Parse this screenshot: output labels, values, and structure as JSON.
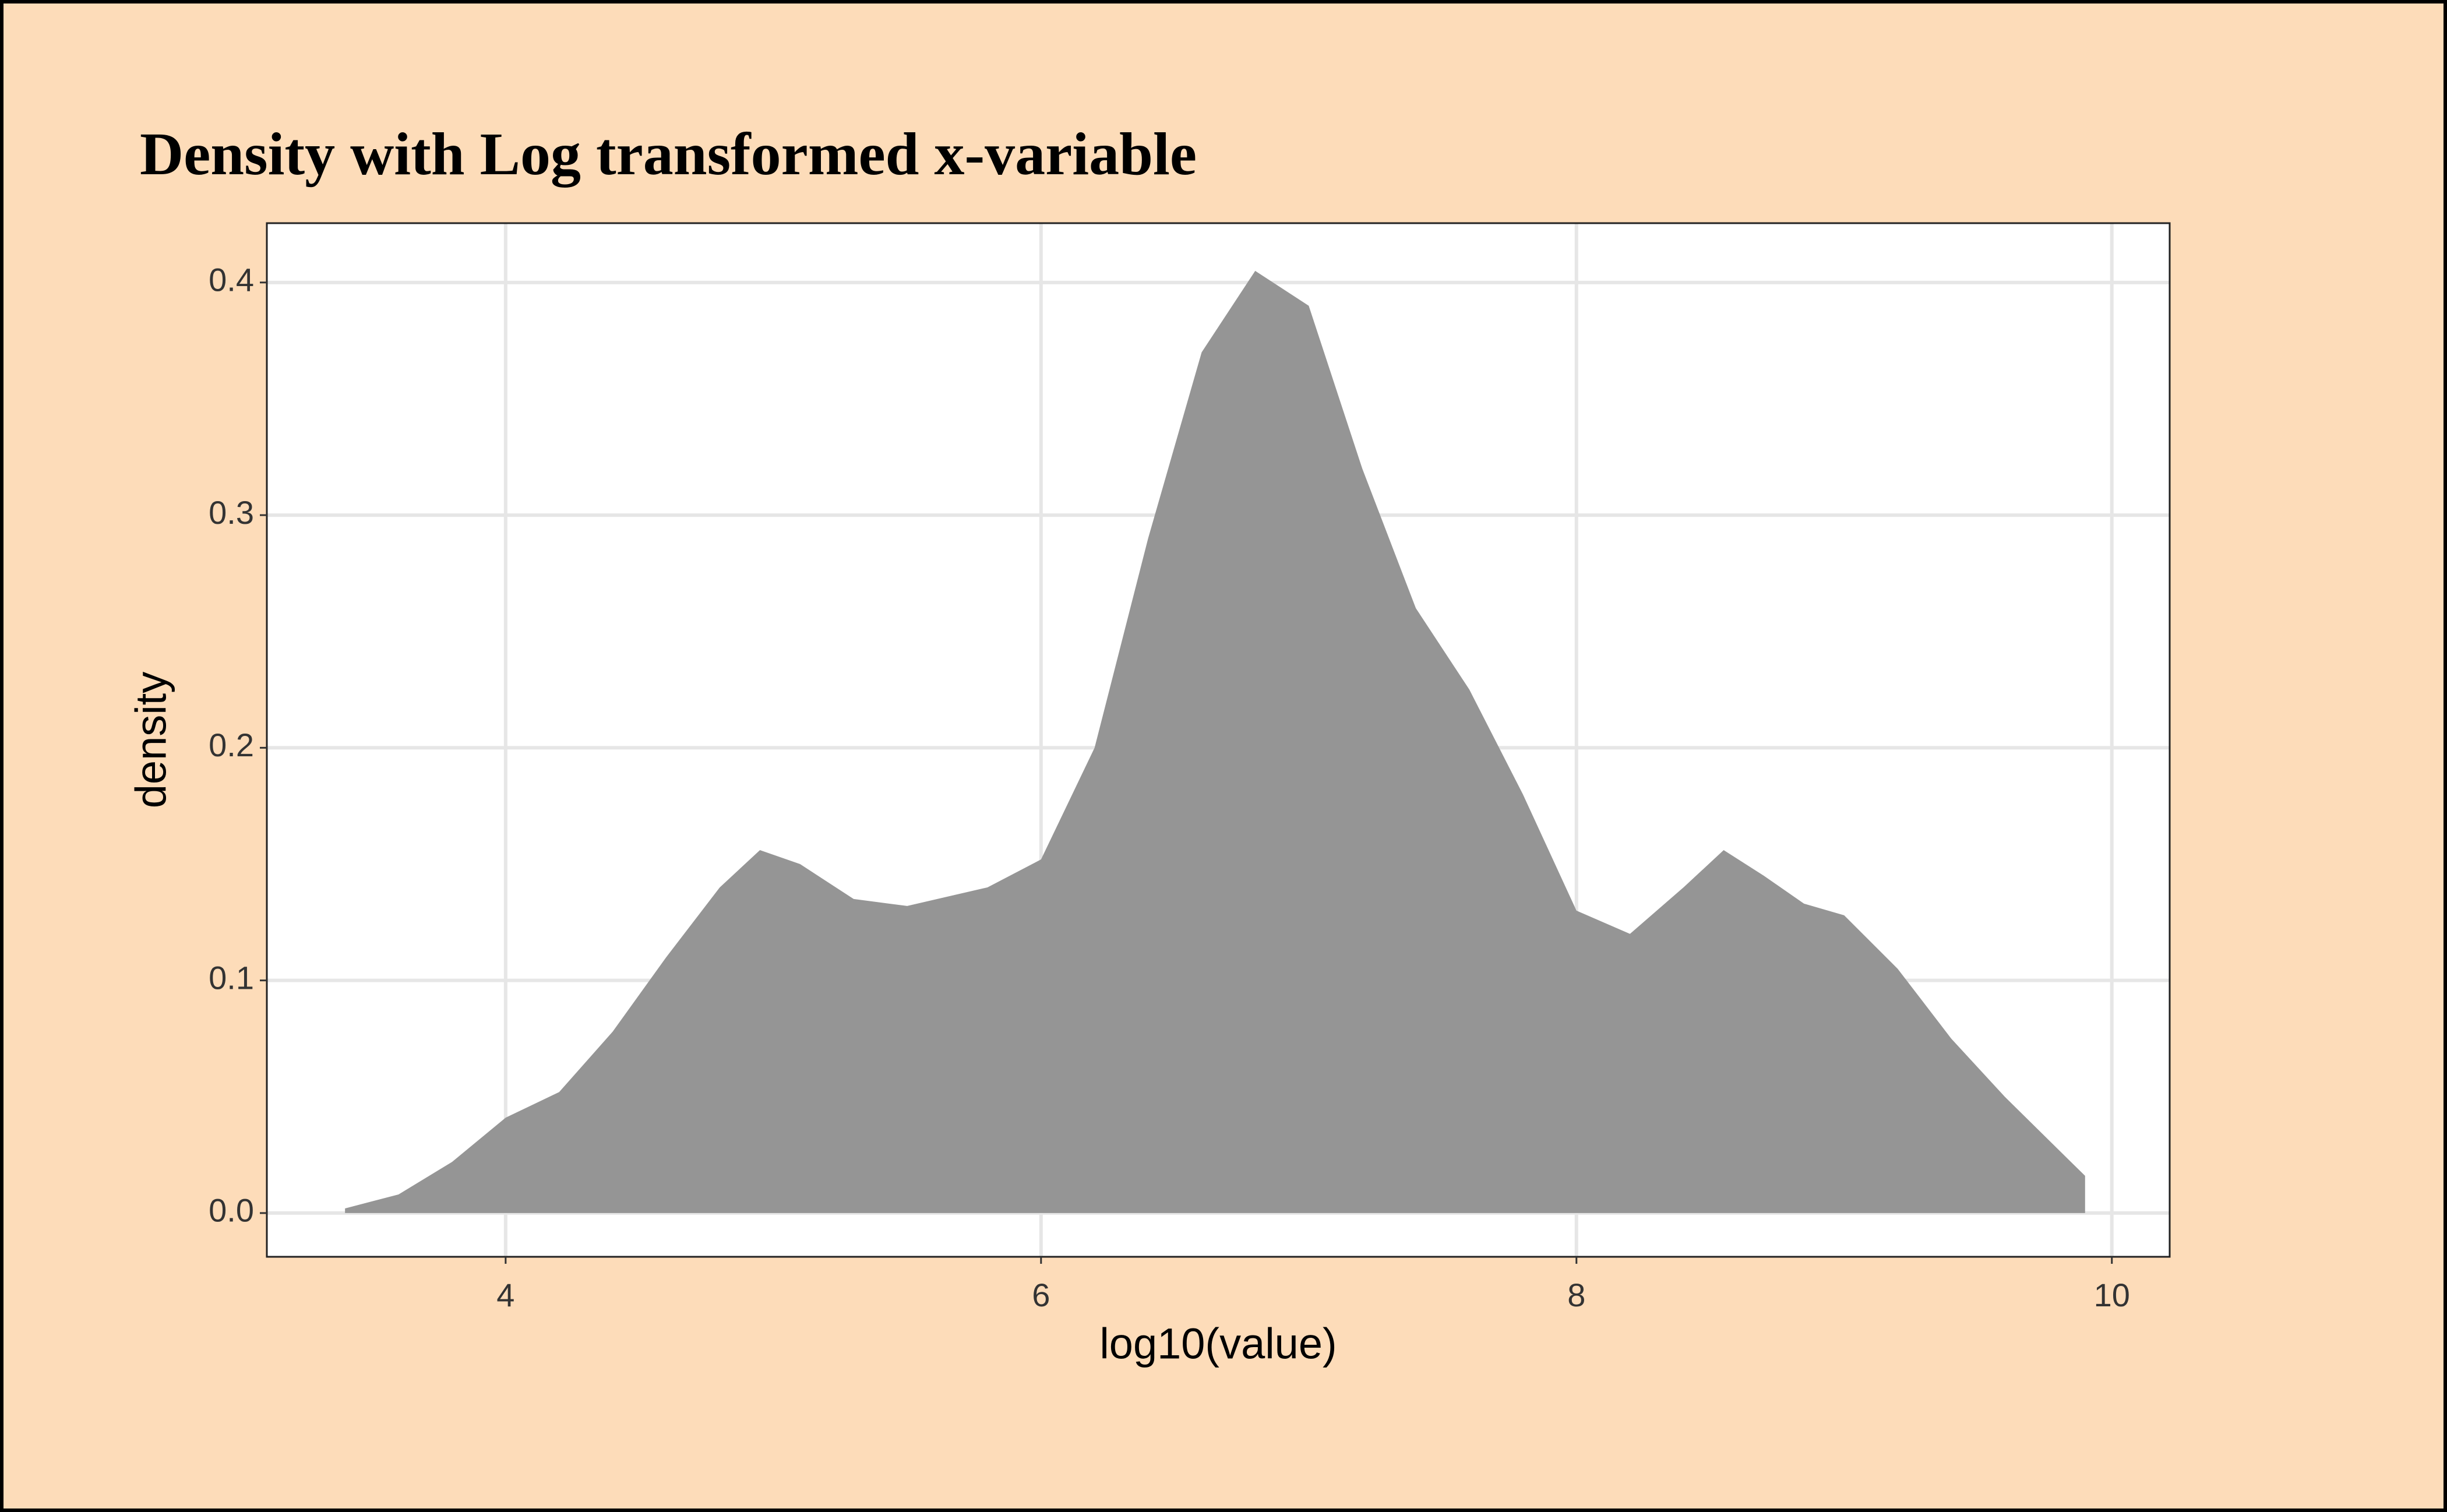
{
  "chart_data": {
    "type": "area",
    "title": "Density with Log transformed x-variable",
    "x_label": "log10(value)",
    "y_label": "density",
    "x": [
      3.4,
      3.6,
      3.8,
      4.0,
      4.2,
      4.4,
      4.6,
      4.8,
      4.95,
      5.1,
      5.3,
      5.5,
      5.8,
      6.0,
      6.2,
      6.4,
      6.6,
      6.8,
      7.0,
      7.2,
      7.4,
      7.6,
      7.8,
      8.0,
      8.2,
      8.4,
      8.55,
      8.7,
      8.85,
      9.0,
      9.2,
      9.4,
      9.6,
      9.9
    ],
    "values": [
      0.002,
      0.008,
      0.022,
      0.041,
      0.052,
      0.078,
      0.11,
      0.14,
      0.156,
      0.15,
      0.135,
      0.132,
      0.14,
      0.152,
      0.2,
      0.29,
      0.37,
      0.405,
      0.39,
      0.32,
      0.26,
      0.225,
      0.18,
      0.13,
      0.12,
      0.14,
      0.156,
      0.145,
      0.133,
      0.128,
      0.105,
      0.075,
      0.05,
      0.016
    ],
    "color": "#939393",
    "xlim": [
      3.108,
      10.216
    ],
    "ylim": [
      -0.0188,
      0.4255
    ],
    "xticks": [
      4,
      6,
      8,
      10
    ],
    "yticks": [
      {
        "value": 0,
        "label": "0.0"
      },
      0.1,
      0.2,
      0.3,
      0.4
    ],
    "grid": true
  }
}
